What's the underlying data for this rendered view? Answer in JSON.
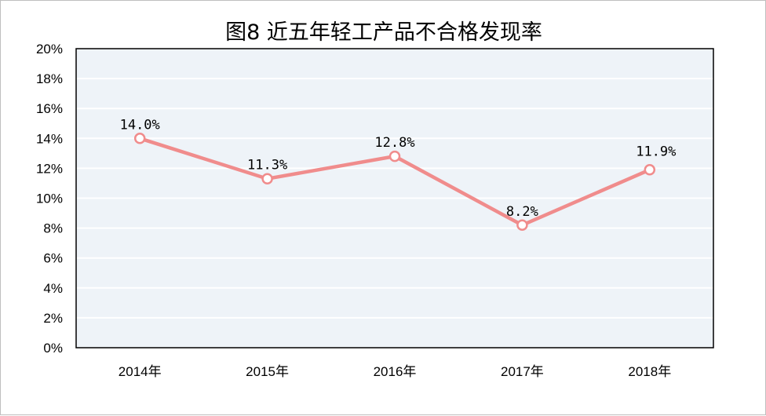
{
  "chart_data": {
    "type": "line",
    "title": "图8 近五年轻工产品不合格发现率",
    "categories": [
      "2014年",
      "2015年",
      "2016年",
      "2017年",
      "2018年"
    ],
    "series": [
      {
        "name": "不合格发现率",
        "values": [
          14.0,
          11.3,
          12.8,
          8.2,
          11.9
        ],
        "color": "#F08C8C"
      }
    ],
    "data_labels": [
      "14.0%",
      "11.3%",
      "12.8%",
      "8.2%",
      "11.9%"
    ],
    "yticks": [
      "0%",
      "2%",
      "4%",
      "6%",
      "8%",
      "10%",
      "12%",
      "14%",
      "16%",
      "18%",
      "20%"
    ],
    "ylim": [
      0,
      20
    ],
    "xlabel": "",
    "ylabel": "",
    "grid": true,
    "plot_background": "#EEF3F8"
  }
}
